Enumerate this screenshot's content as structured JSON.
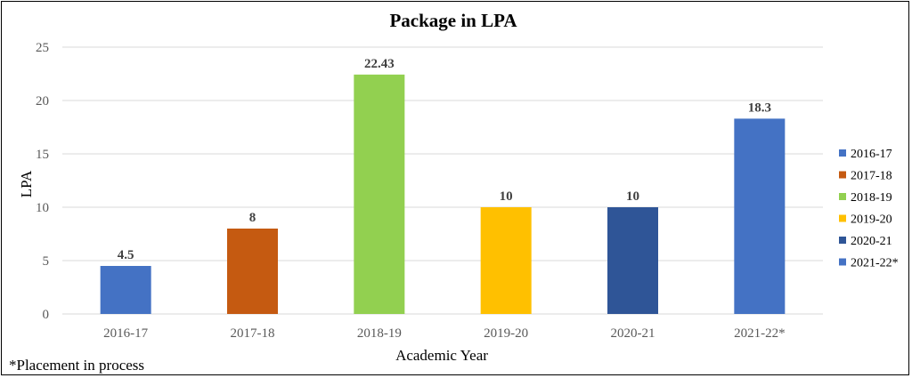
{
  "chart_data": {
    "type": "bar",
    "title": "Package in LPA",
    "xlabel": "Academic Year",
    "ylabel": "LPA",
    "ylim": [
      0,
      25
    ],
    "yticks": [
      0,
      5,
      10,
      15,
      20,
      25
    ],
    "grid": true,
    "legend_position": "right",
    "categories": [
      "2016-17",
      "2017-18",
      "2018-19",
      "2019-20",
      "2020-21",
      "2021-22*"
    ],
    "values": [
      4.5,
      8,
      22.43,
      10,
      10,
      18.3
    ],
    "value_labels": [
      "4.5",
      "8",
      "22.43",
      "10",
      "10",
      "18.3"
    ],
    "colors": [
      "#4472C4",
      "#C55A11",
      "#92D050",
      "#FFC000",
      "#2F5597",
      "#4472C4"
    ],
    "legend": [
      "2016-17",
      "2017-18",
      "2018-19",
      "2019-20",
      "2020-21",
      "2021-22*"
    ],
    "footnote": "*Placement in process"
  }
}
